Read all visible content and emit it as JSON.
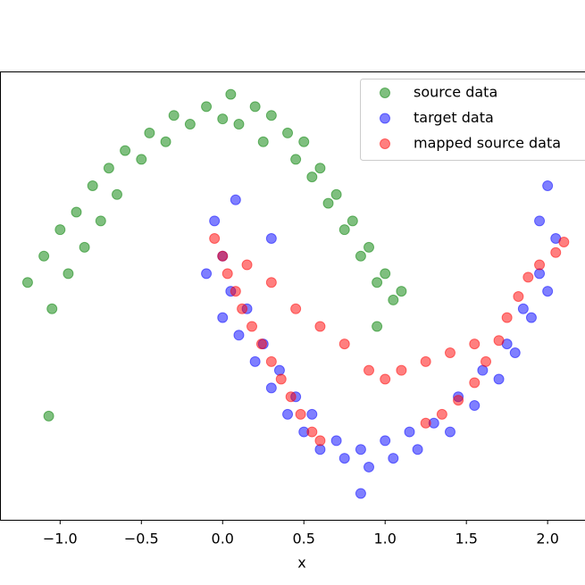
{
  "chart_data": {
    "type": "scatter",
    "xlabel": "x",
    "xlim": [
      -1.37,
      2.23
    ],
    "ylim": [
      -1.3,
      1.25
    ],
    "xticks": [
      {
        "value": -1.0,
        "label": "−1.0"
      },
      {
        "value": -0.5,
        "label": "−0.5"
      },
      {
        "value": 0,
        "label": "0.0"
      },
      {
        "value": 0.5,
        "label": "0.5"
      },
      {
        "value": 1,
        "label": "1.0"
      },
      {
        "value": 1.5,
        "label": "1.5"
      },
      {
        "value": 2,
        "label": "2.0"
      }
    ],
    "legend": "upper right",
    "series": [
      {
        "name": "source data",
        "color": "#008000",
        "x": [
          -1.2,
          -1.1,
          -1.05,
          -1.0,
          -0.95,
          -0.9,
          -0.85,
          -0.8,
          -0.75,
          -0.7,
          -0.65,
          -0.6,
          -0.5,
          -0.45,
          -0.35,
          -0.3,
          -0.2,
          -0.1,
          0.0,
          0.05,
          0.1,
          0.2,
          0.25,
          0.3,
          0.4,
          0.45,
          0.5,
          0.55,
          0.6,
          0.65,
          0.7,
          0.75,
          0.8,
          0.85,
          0.9,
          0.95,
          1.0,
          1.05,
          1.1,
          0.95,
          -1.07
        ],
        "values": [
          0.05,
          0.2,
          -0.1,
          0.35,
          0.1,
          0.45,
          0.25,
          0.6,
          0.4,
          0.7,
          0.55,
          0.8,
          0.75,
          0.9,
          0.85,
          1.0,
          0.95,
          1.05,
          0.98,
          1.12,
          0.95,
          1.05,
          0.85,
          1.0,
          0.9,
          0.75,
          0.85,
          0.65,
          0.7,
          0.5,
          0.55,
          0.35,
          0.4,
          0.2,
          0.25,
          0.05,
          0.1,
          -0.05,
          0.0,
          -0.2,
          -0.71
        ]
      },
      {
        "name": "target data",
        "color": "#0000ff",
        "x": [
          -0.05,
          0.0,
          -0.1,
          0.05,
          0.0,
          0.1,
          0.15,
          0.2,
          0.25,
          0.3,
          0.35,
          0.4,
          0.45,
          0.5,
          0.55,
          0.6,
          0.7,
          0.75,
          0.85,
          0.9,
          1.0,
          1.05,
          1.15,
          1.2,
          1.3,
          1.4,
          1.45,
          1.55,
          1.6,
          1.7,
          1.75,
          1.8,
          1.85,
          1.9,
          1.95,
          2.0,
          2.05,
          1.95,
          2.0,
          0.85,
          0.08,
          0.3
        ],
        "values": [
          0.4,
          0.2,
          0.1,
          0.0,
          -0.15,
          -0.25,
          -0.1,
          -0.4,
          -0.3,
          -0.55,
          -0.45,
          -0.7,
          -0.6,
          -0.8,
          -0.7,
          -0.9,
          -0.85,
          -0.95,
          -0.9,
          -1.0,
          -0.85,
          -0.95,
          -0.8,
          -0.9,
          -0.75,
          -0.8,
          -0.6,
          -0.65,
          -0.45,
          -0.5,
          -0.3,
          -0.35,
          -0.1,
          -0.15,
          0.1,
          0.0,
          0.3,
          0.4,
          0.6,
          -1.15,
          0.52,
          0.3
        ]
      },
      {
        "name": "mapped source data",
        "color": "#ff0000",
        "x": [
          -0.05,
          0.0,
          0.03,
          0.08,
          0.12,
          0.18,
          0.24,
          0.3,
          0.36,
          0.42,
          0.48,
          0.55,
          0.6,
          0.15,
          0.3,
          0.45,
          0.6,
          0.75,
          0.9,
          1.0,
          1.1,
          1.25,
          1.4,
          1.55,
          1.25,
          1.35,
          1.45,
          1.55,
          1.62,
          1.7,
          1.75,
          1.82,
          1.88,
          1.95,
          2.05,
          2.1
        ],
        "values": [
          0.3,
          0.2,
          0.1,
          0.0,
          -0.1,
          -0.2,
          -0.3,
          -0.4,
          -0.5,
          -0.6,
          -0.7,
          -0.8,
          -0.85,
          0.15,
          0.05,
          -0.1,
          -0.2,
          -0.3,
          -0.45,
          -0.5,
          -0.45,
          -0.4,
          -0.35,
          -0.3,
          -0.75,
          -0.7,
          -0.62,
          -0.52,
          -0.4,
          -0.28,
          -0.15,
          -0.03,
          0.08,
          0.15,
          0.22,
          0.28
        ]
      }
    ]
  }
}
